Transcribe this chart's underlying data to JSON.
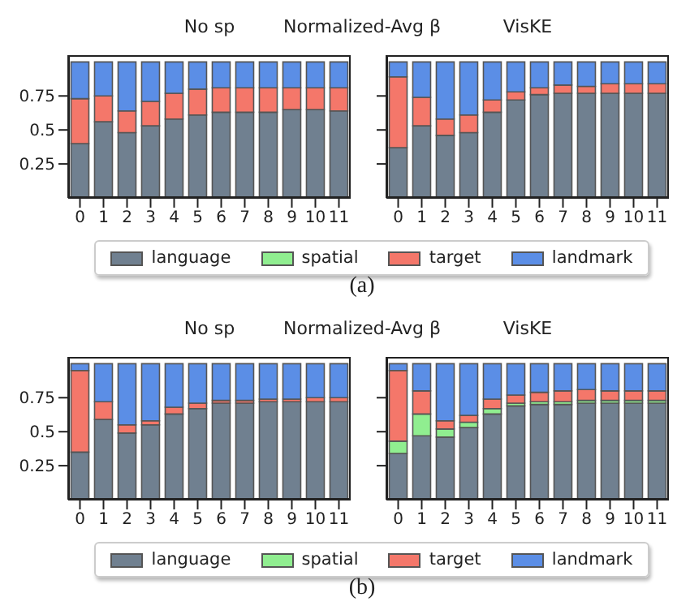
{
  "chart_data": [
    {
      "type": "bar",
      "title": "No sp",
      "annotations": [
        "Normalized-Avg β",
        "(a)"
      ],
      "categories": [
        "0",
        "1",
        "2",
        "3",
        "4",
        "5",
        "6",
        "7",
        "8",
        "9",
        "10",
        "11"
      ],
      "stacked": true,
      "ylim": [
        0,
        1.05
      ],
      "yticks": [
        0.25,
        0.5,
        0.75
      ],
      "series": [
        {
          "color": "#708090",
          "values": [
            0.4,
            0.56,
            0.48,
            0.53,
            0.58,
            0.61,
            0.63,
            0.63,
            0.63,
            0.65,
            0.65,
            0.64
          ]
        },
        {
          "color": "#f4776a",
          "values": [
            0.33,
            0.19,
            0.16,
            0.18,
            0.19,
            0.19,
            0.18,
            0.18,
            0.18,
            0.16,
            0.16,
            0.17
          ]
        },
        {
          "color": "#5b8ee6",
          "values": [
            0.27,
            0.25,
            0.36,
            0.29,
            0.23,
            0.2,
            0.19,
            0.19,
            0.19,
            0.19,
            0.19,
            0.19
          ]
        }
      ]
    },
    {
      "type": "bar",
      "title": "VisKE",
      "categories": [
        "0",
        "1",
        "2",
        "3",
        "4",
        "5",
        "6",
        "7",
        "8",
        "9",
        "10",
        "11"
      ],
      "stacked": true,
      "ylim": [
        0,
        1.05
      ],
      "yticks": [
        {
          "value": 0.25,
          "label": null
        },
        {
          "value": 0.5,
          "label": null
        },
        {
          "value": 0.75,
          "label": null
        }
      ],
      "tick_labels": "x",
      "legend": "bottom",
      "series": [
        {
          "name": "language",
          "color": "#708090",
          "values": [
            0.37,
            0.53,
            0.46,
            0.48,
            0.63,
            0.72,
            0.76,
            0.77,
            0.77,
            0.77,
            0.77,
            0.77
          ]
        },
        {
          "name": "spatial",
          "color": "#90ee90",
          "values": [
            0,
            0,
            0,
            0,
            0,
            0,
            0,
            0,
            0,
            0,
            0,
            0
          ]
        },
        {
          "name": "target",
          "color": "#f4776a",
          "values": [
            0.52,
            0.21,
            0.12,
            0.13,
            0.09,
            0.06,
            0.05,
            0.06,
            0.05,
            0.07,
            0.07,
            0.07
          ]
        },
        {
          "name": "landmark",
          "color": "#5b8ee6",
          "values": [
            0.11,
            0.26,
            0.42,
            0.39,
            0.28,
            0.22,
            0.19,
            0.17,
            0.18,
            0.16,
            0.16,
            0.16
          ]
        }
      ]
    },
    {
      "type": "bar",
      "title": "No sp",
      "annotations": [
        "Normalized-Avg β",
        "(b)"
      ],
      "categories": [
        "0",
        "1",
        "2",
        "3",
        "4",
        "5",
        "6",
        "7",
        "8",
        "9",
        "10",
        "11"
      ],
      "stacked": true,
      "ylim": [
        0,
        1.05
      ],
      "yticks": [
        0.25,
        0.5,
        0.75
      ],
      "series": [
        {
          "color": "#708090",
          "values": [
            0.35,
            0.59,
            0.49,
            0.55,
            0.63,
            0.67,
            0.71,
            0.71,
            0.72,
            0.72,
            0.72,
            0.72
          ]
        },
        {
          "color": "#f4776a",
          "values": [
            0.6,
            0.13,
            0.06,
            0.03,
            0.05,
            0.04,
            0.02,
            0.02,
            0.02,
            0.02,
            0.03,
            0.03
          ]
        },
        {
          "color": "#5b8ee6",
          "values": [
            0.05,
            0.28,
            0.45,
            0.42,
            0.32,
            0.29,
            0.27,
            0.27,
            0.26,
            0.26,
            0.25,
            0.25
          ]
        }
      ]
    },
    {
      "type": "bar",
      "title": "VisKE",
      "categories": [
        "0",
        "1",
        "2",
        "3",
        "4",
        "5",
        "6",
        "7",
        "8",
        "9",
        "10",
        "11"
      ],
      "stacked": true,
      "ylim": [
        0,
        1.05
      ],
      "yticks": [
        {
          "value": 0.25,
          "label": null
        },
        {
          "value": 0.5,
          "label": null
        },
        {
          "value": 0.75,
          "label": null
        }
      ],
      "tick_labels": "x",
      "legend": "bottom",
      "series": [
        {
          "name": "language",
          "color": "#708090",
          "values": [
            0.34,
            0.47,
            0.46,
            0.53,
            0.63,
            0.69,
            0.7,
            0.7,
            0.71,
            0.71,
            0.71,
            0.71
          ]
        },
        {
          "name": "spatial",
          "color": "#90ee90",
          "values": [
            0.09,
            0.16,
            0.06,
            0.04,
            0.04,
            0.02,
            0.02,
            0.02,
            0.02,
            0.02,
            0.02,
            0.02
          ]
        },
        {
          "name": "target",
          "color": "#f4776a",
          "values": [
            0.52,
            0.17,
            0.06,
            0.05,
            0.07,
            0.06,
            0.07,
            0.08,
            0.08,
            0.07,
            0.07,
            0.07
          ]
        },
        {
          "name": "landmark",
          "color": "#5b8ee6",
          "values": [
            0.05,
            0.2,
            0.42,
            0.38,
            0.26,
            0.23,
            0.21,
            0.2,
            0.19,
            0.2,
            0.2,
            0.2
          ]
        }
      ]
    }
  ]
}
